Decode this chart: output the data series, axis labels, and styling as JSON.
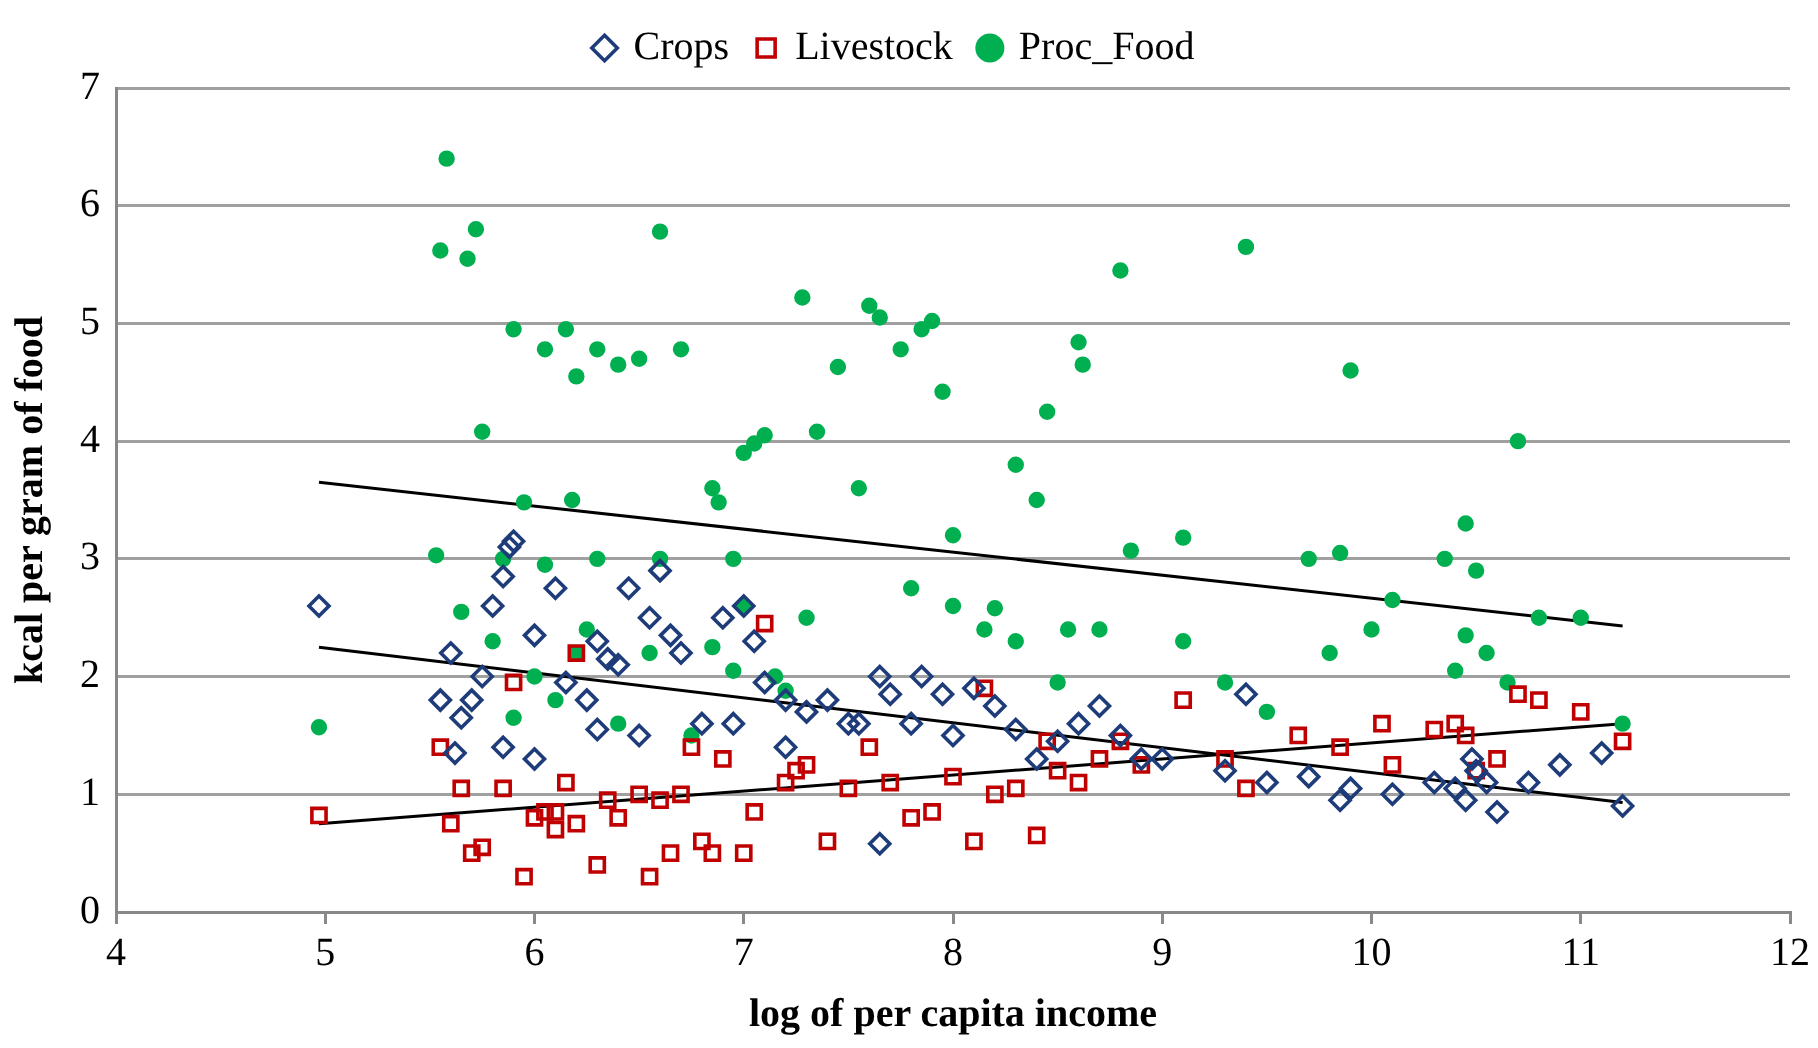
{
  "chart_data": {
    "type": "scatter",
    "xlabel": "log of per capita income",
    "ylabel": "kcal per gram of food",
    "xlim": [
      4,
      12
    ],
    "xticks": [
      4,
      5,
      6,
      7,
      8,
      9,
      10,
      11,
      12
    ],
    "ylim": [
      0,
      7
    ],
    "yticks": [
      0,
      1,
      2,
      3,
      4,
      5,
      6,
      7
    ],
    "grid": "y",
    "legend": "top",
    "series": [
      {
        "name": "Crops",
        "color": "#1f3c7a",
        "marker": "diamond",
        "x": [
          4.97,
          5.55,
          5.6,
          5.7,
          5.75,
          5.8,
          5.85,
          5.88,
          5.9,
          6.0,
          6.1,
          6.15,
          6.25,
          6.3,
          6.35,
          6.4,
          6.45,
          6.55,
          6.6,
          6.65,
          6.7,
          5.65,
          5.62,
          5.85,
          6.0,
          6.5,
          6.3,
          6.8,
          6.9,
          7.0,
          7.05,
          7.1,
          7.2,
          7.3,
          7.4,
          7.5,
          7.55,
          7.65,
          7.7,
          7.65,
          7.8,
          7.85,
          7.95,
          8.0,
          8.1,
          8.2,
          8.3,
          8.5,
          8.6,
          8.7,
          8.8,
          9.0,
          9.3,
          9.4,
          9.7,
          9.85,
          9.9,
          10.1,
          10.4,
          10.45,
          10.5,
          10.55,
          10.6,
          10.75,
          10.9,
          11.1,
          11.2,
          9.5,
          8.4,
          7.2,
          6.95,
          8.9,
          10.3,
          10.48
        ],
        "values": [
          2.6,
          1.8,
          2.2,
          1.8,
          2.0,
          2.6,
          2.85,
          3.1,
          3.15,
          2.35,
          2.75,
          1.95,
          1.8,
          2.3,
          2.15,
          2.1,
          2.75,
          2.5,
          2.9,
          2.35,
          2.2,
          1.65,
          1.35,
          1.4,
          1.3,
          1.5,
          1.55,
          1.6,
          2.5,
          2.6,
          2.3,
          1.95,
          1.8,
          1.7,
          1.8,
          1.6,
          1.6,
          2.0,
          1.85,
          0.58,
          1.6,
          2.0,
          1.85,
          1.5,
          1.9,
          1.75,
          1.55,
          1.45,
          1.6,
          1.75,
          1.5,
          1.3,
          1.2,
          1.85,
          1.15,
          0.95,
          1.05,
          1.0,
          1.05,
          0.95,
          1.2,
          1.1,
          0.85,
          1.1,
          1.25,
          1.35,
          0.9,
          1.1,
          1.3,
          1.4,
          1.6,
          1.3,
          1.1,
          1.3
        ]
      },
      {
        "name": "Livestock",
        "color": "#c00000",
        "marker": "square",
        "x": [
          4.97,
          5.55,
          5.6,
          5.65,
          5.7,
          5.75,
          5.85,
          5.9,
          5.95,
          6.0,
          6.05,
          6.1,
          6.15,
          6.2,
          6.2,
          6.3,
          6.35,
          6.4,
          6.5,
          6.55,
          6.6,
          6.65,
          6.7,
          6.75,
          6.8,
          6.85,
          6.9,
          7.0,
          7.05,
          7.1,
          7.2,
          7.3,
          7.4,
          7.5,
          7.6,
          7.7,
          7.8,
          7.9,
          8.0,
          8.1,
          8.15,
          8.2,
          8.3,
          8.4,
          8.45,
          8.5,
          8.6,
          8.7,
          8.8,
          8.9,
          9.1,
          9.3,
          9.4,
          9.65,
          9.85,
          10.05,
          10.1,
          10.3,
          10.4,
          10.45,
          10.5,
          10.6,
          10.7,
          10.8,
          11.0,
          11.2,
          7.25,
          6.1
        ],
        "values": [
          0.82,
          1.4,
          0.75,
          1.05,
          0.5,
          0.55,
          1.05,
          1.95,
          0.3,
          0.8,
          0.85,
          0.85,
          1.1,
          2.2,
          0.75,
          0.4,
          0.95,
          0.8,
          1.0,
          0.3,
          0.95,
          0.5,
          1.0,
          1.4,
          0.6,
          0.5,
          1.3,
          0.5,
          0.85,
          2.45,
          1.1,
          1.25,
          0.6,
          1.05,
          1.4,
          1.1,
          0.8,
          0.85,
          1.15,
          0.6,
          1.9,
          1.0,
          1.05,
          0.65,
          1.45,
          1.2,
          1.1,
          1.3,
          1.45,
          1.25,
          1.8,
          1.3,
          1.05,
          1.5,
          1.4,
          1.6,
          1.25,
          1.55,
          1.6,
          1.5,
          1.2,
          1.3,
          1.85,
          1.8,
          1.7,
          1.45,
          1.2,
          0.7
        ]
      },
      {
        "name": "Proc_Food",
        "color": "#00b050",
        "marker": "circle",
        "x": [
          4.97,
          5.55,
          5.58,
          5.53,
          5.68,
          5.72,
          5.75,
          5.9,
          5.85,
          5.95,
          6.05,
          6.15,
          6.2,
          6.3,
          6.4,
          6.5,
          6.6,
          6.7,
          6.05,
          6.18,
          6.25,
          6.3,
          5.65,
          5.8,
          5.9,
          6.0,
          6.1,
          6.2,
          6.4,
          6.55,
          6.6,
          6.85,
          6.88,
          6.95,
          7.0,
          7.05,
          7.1,
          7.28,
          7.35,
          7.0,
          6.85,
          6.95,
          7.15,
          7.3,
          7.45,
          7.55,
          7.6,
          7.65,
          7.75,
          7.85,
          7.9,
          7.95,
          8.0,
          7.8,
          8.0,
          8.15,
          8.2,
          8.3,
          8.4,
          8.45,
          8.6,
          8.62,
          8.8,
          8.85,
          9.1,
          9.1,
          9.4,
          9.7,
          9.85,
          9.9,
          10.0,
          10.1,
          10.35,
          10.45,
          10.5,
          10.45,
          10.55,
          10.7,
          10.8,
          11.0,
          11.2,
          10.4,
          9.8,
          8.7,
          8.5,
          7.2,
          6.75,
          8.3,
          8.55,
          9.3,
          9.5,
          10.65
        ],
        "values": [
          1.57,
          5.62,
          6.4,
          3.03,
          5.55,
          5.8,
          4.08,
          4.95,
          3.0,
          3.48,
          4.78,
          4.95,
          4.55,
          4.78,
          4.65,
          4.7,
          5.78,
          4.78,
          2.95,
          3.5,
          2.4,
          3.0,
          2.55,
          2.3,
          1.65,
          2.0,
          1.8,
          2.2,
          1.6,
          2.2,
          3.0,
          3.6,
          3.48,
          3.0,
          3.9,
          3.98,
          4.05,
          5.22,
          4.08,
          2.6,
          2.25,
          2.05,
          2.0,
          2.5,
          4.63,
          3.6,
          5.15,
          5.05,
          4.78,
          4.95,
          5.02,
          4.42,
          3.2,
          2.75,
          2.6,
          2.4,
          2.58,
          3.8,
          3.5,
          4.25,
          4.84,
          4.65,
          5.45,
          3.07,
          3.18,
          2.3,
          5.65,
          3.0,
          3.05,
          4.6,
          2.4,
          2.65,
          3.0,
          3.3,
          2.9,
          2.35,
          2.2,
          4.0,
          2.5,
          2.5,
          1.6,
          2.05,
          2.2,
          2.4,
          1.95,
          1.88,
          1.5,
          2.3,
          2.4,
          1.95,
          1.7,
          1.95
        ]
      },
      {
        "type": "line",
        "color": "#000000",
        "marker": "none",
        "x": [
          4.97,
          11.2
        ],
        "values": [
          3.65,
          2.43
        ]
      },
      {
        "type": "line",
        "color": "#000000",
        "marker": "none",
        "x": [
          4.97,
          11.2
        ],
        "values": [
          2.25,
          0.93
        ]
      },
      {
        "type": "line",
        "color": "#000000",
        "marker": "none",
        "x": [
          4.97,
          11.2
        ],
        "values": [
          0.75,
          1.6
        ]
      }
    ]
  }
}
